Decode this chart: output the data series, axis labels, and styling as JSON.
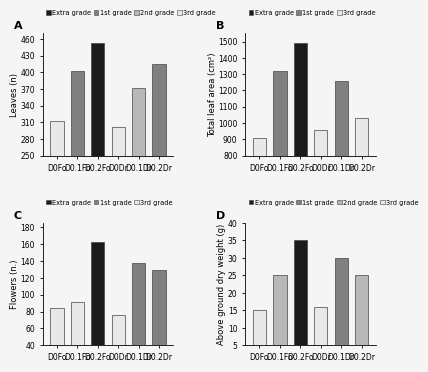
{
  "A": {
    "title": "A",
    "ylabel": "Leaves (n)",
    "ylim": [
      250,
      470
    ],
    "yticks": [
      250,
      280,
      310,
      340,
      370,
      400,
      430,
      460
    ],
    "categories": [
      "D0Fo",
      "D0.1Fo",
      "D0.2Fo",
      "D0Dr",
      "D0.1Dr",
      "D0.2Dr"
    ],
    "legend": [
      "Extra grade",
      "1st grade",
      "2nd grade",
      "3rd grade"
    ],
    "legend_colors": [
      "#1a1a1a",
      "#808080",
      "#b8b8b8",
      "#e8e8e8"
    ],
    "bars": [
      {
        "value": 312,
        "color": "#e8e8e8"
      },
      {
        "value": 402,
        "color": "#808080"
      },
      {
        "value": 452,
        "color": "#1a1a1a"
      },
      {
        "value": 302,
        "color": "#e8e8e8"
      },
      {
        "value": 372,
        "color": "#b8b8b8"
      },
      {
        "value": 415,
        "color": "#808080"
      }
    ]
  },
  "B": {
    "title": "B",
    "ylabel": "Total leaf area (cm²)",
    "ylim": [
      800,
      1550
    ],
    "yticks": [
      800,
      900,
      1000,
      1100,
      1200,
      1300,
      1400,
      1500
    ],
    "categories": [
      "D0Fo",
      "D0.1Fo",
      "D0.2Fo",
      "D0Dr",
      "D0.1Dr",
      "D0.2Dr"
    ],
    "legend": [
      "Extra grade",
      "1st grade",
      "3rd grade"
    ],
    "legend_colors": [
      "#1a1a1a",
      "#808080",
      "#e8e8e8"
    ],
    "bars": [
      {
        "value": 910,
        "color": "#e8e8e8"
      },
      {
        "value": 1320,
        "color": "#808080"
      },
      {
        "value": 1490,
        "color": "#1a1a1a"
      },
      {
        "value": 960,
        "color": "#e8e8e8"
      },
      {
        "value": 1260,
        "color": "#808080"
      },
      {
        "value": 1030,
        "color": "#e8e8e8"
      }
    ]
  },
  "C": {
    "title": "C",
    "ylabel": "Flowers (n.)",
    "ylim": [
      40,
      185
    ],
    "yticks": [
      40,
      60,
      80,
      100,
      120,
      140,
      160,
      180
    ],
    "categories": [
      "D0Fo",
      "D0.1Fo",
      "D0.2Fo",
      "D0Dr",
      "D0.1Dr",
      "D0.2Dr"
    ],
    "legend": [
      "Extra grade",
      "1st grade",
      "3rd grade"
    ],
    "legend_colors": [
      "#1a1a1a",
      "#808080",
      "#e8e8e8"
    ],
    "bars": [
      {
        "value": 84,
        "color": "#e8e8e8"
      },
      {
        "value": 91,
        "color": "#e8e8e8"
      },
      {
        "value": 162,
        "color": "#1a1a1a"
      },
      {
        "value": 76,
        "color": "#e8e8e8"
      },
      {
        "value": 138,
        "color": "#808080"
      },
      {
        "value": 129,
        "color": "#808080"
      }
    ]
  },
  "D": {
    "title": "D",
    "ylabel": "Above ground dry weight (g)",
    "ylim": [
      5,
      40
    ],
    "yticks": [
      5,
      10,
      15,
      20,
      25,
      30,
      35,
      40
    ],
    "categories": [
      "D0Fo",
      "D0.1Fo",
      "D0.2Fo",
      "D0Dr",
      "D0.1Dr",
      "D0.2Dr"
    ],
    "legend": [
      "Extra grade",
      "1st grade",
      "2nd grade",
      "3rd grade"
    ],
    "legend_colors": [
      "#1a1a1a",
      "#808080",
      "#b8b8b8",
      "#e8e8e8"
    ],
    "bars": [
      {
        "value": 15,
        "color": "#e8e8e8"
      },
      {
        "value": 25,
        "color": "#b8b8b8"
      },
      {
        "value": 35,
        "color": "#1a1a1a"
      },
      {
        "value": 16,
        "color": "#e8e8e8"
      },
      {
        "value": 30,
        "color": "#808080"
      },
      {
        "value": 25,
        "color": "#b8b8b8"
      }
    ]
  },
  "bg_color": "#f5f5f5",
  "bar_width": 0.65,
  "tick_fontsize": 5.5,
  "label_fontsize": 6.0,
  "legend_fontsize": 4.8
}
